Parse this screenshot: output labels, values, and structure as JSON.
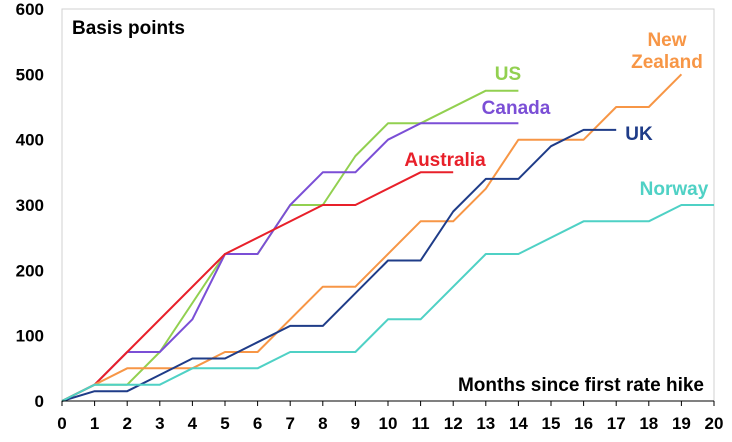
{
  "chart_data": {
    "type": "line",
    "title": "",
    "ylabel": "Basis points",
    "xlabel": "Months since first rate hike",
    "xlim": [
      0,
      20
    ],
    "ylim": [
      0,
      600
    ],
    "x_ticks": [
      "0",
      "1",
      "2",
      "3",
      "4",
      "5",
      "6",
      "7",
      "8",
      "9",
      "10",
      "11",
      "12",
      "13",
      "14",
      "15",
      "16",
      "17",
      "18",
      "19",
      "20"
    ],
    "y_ticks": [
      "0",
      "100",
      "200",
      "300",
      "400",
      "500",
      "600"
    ],
    "grid": false,
    "legend": "direct-labels",
    "series": [
      {
        "name": "US",
        "color": "#92d050",
        "label_lines": [
          "US"
        ],
        "points": [
          [
            0,
            0
          ],
          [
            1,
            25
          ],
          [
            2,
            25
          ],
          [
            3,
            75
          ],
          [
            5,
            225
          ],
          [
            6,
            225
          ],
          [
            7,
            300
          ],
          [
            8,
            300
          ],
          [
            9,
            375
          ],
          [
            10,
            425
          ],
          [
            11,
            425
          ],
          [
            13,
            475
          ],
          [
            14,
            475
          ]
        ]
      },
      {
        "name": "Canada",
        "color": "#7b4fd6",
        "label_lines": [
          "Canada"
        ],
        "points": [
          [
            0,
            0
          ],
          [
            1,
            25
          ],
          [
            2,
            75
          ],
          [
            3,
            75
          ],
          [
            4,
            125
          ],
          [
            5,
            225
          ],
          [
            6,
            225
          ],
          [
            7,
            300
          ],
          [
            8,
            350
          ],
          [
            9,
            350
          ],
          [
            10,
            400
          ],
          [
            11,
            425
          ],
          [
            14,
            425
          ]
        ]
      },
      {
        "name": "Australia",
        "color": "#e8202a",
        "label_lines": [
          "Australia"
        ],
        "points": [
          [
            0,
            0
          ],
          [
            1,
            25
          ],
          [
            2,
            75
          ],
          [
            5,
            225
          ],
          [
            8,
            300
          ],
          [
            9,
            300
          ],
          [
            11,
            350
          ],
          [
            12,
            350
          ]
        ]
      },
      {
        "name": "New Zealand",
        "color": "#f79646",
        "label_lines": [
          "New",
          "Zealand"
        ],
        "points": [
          [
            0,
            0
          ],
          [
            1,
            25
          ],
          [
            2,
            50
          ],
          [
            4,
            50
          ],
          [
            5,
            75
          ],
          [
            6,
            75
          ],
          [
            8,
            175
          ],
          [
            9,
            175
          ],
          [
            11,
            275
          ],
          [
            12,
            275
          ],
          [
            13,
            325
          ],
          [
            14,
            400
          ],
          [
            15,
            400
          ],
          [
            16,
            400
          ],
          [
            17,
            450
          ],
          [
            18,
            450
          ],
          [
            19,
            500
          ]
        ]
      },
      {
        "name": "UK",
        "color": "#1f3c88",
        "label_lines": [
          "UK"
        ],
        "points": [
          [
            0,
            0
          ],
          [
            1,
            15
          ],
          [
            2,
            15
          ],
          [
            3,
            40
          ],
          [
            4,
            65
          ],
          [
            5,
            65
          ],
          [
            6,
            90
          ],
          [
            7,
            115
          ],
          [
            8,
            115
          ],
          [
            10,
            215
          ],
          [
            11,
            215
          ],
          [
            12,
            290
          ],
          [
            13,
            340
          ],
          [
            14,
            340
          ],
          [
            15,
            390
          ],
          [
            16,
            415
          ],
          [
            17,
            415
          ]
        ]
      },
      {
        "name": "Norway",
        "color": "#4fd1c5",
        "label_lines": [
          "Norway"
        ],
        "points": [
          [
            0,
            0
          ],
          [
            1,
            25
          ],
          [
            3,
            25
          ],
          [
            4,
            50
          ],
          [
            6,
            50
          ],
          [
            7,
            75
          ],
          [
            9,
            75
          ],
          [
            10,
            125
          ],
          [
            11,
            125
          ],
          [
            13,
            225
          ],
          [
            14,
            225
          ],
          [
            16,
            275
          ],
          [
            18,
            275
          ],
          [
            19,
            300
          ],
          [
            20,
            300
          ]
        ]
      }
    ]
  }
}
